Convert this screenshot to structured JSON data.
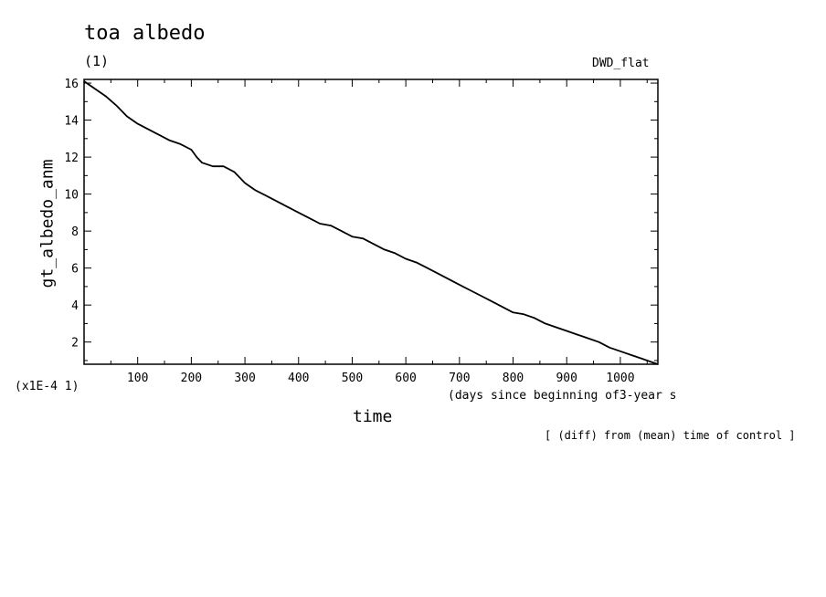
{
  "title": "toa albedo",
  "unit_label": "(1)",
  "run_label": "DWD_flat",
  "scale_label": "(x1E-4 1)",
  "x_unit_label": "(days since beginning of3-year s",
  "footnote": "[ (diff) from (mean) time of control ]",
  "chart_data": {
    "type": "line",
    "xlabel": "time",
    "ylabel": "gt_albedo_anm",
    "xlim": [
      0,
      1070
    ],
    "ylim": [
      0.8,
      16.2
    ],
    "x_ticks": [
      100,
      200,
      300,
      400,
      500,
      600,
      700,
      800,
      900,
      1000
    ],
    "y_ticks": [
      2,
      4,
      6,
      8,
      10,
      12,
      14,
      16
    ],
    "grid": false,
    "color": "#000000",
    "series": [
      {
        "x": [
          0,
          20,
          40,
          60,
          80,
          100,
          120,
          140,
          160,
          180,
          200,
          210,
          220,
          240,
          260,
          280,
          300,
          320,
          340,
          360,
          380,
          400,
          420,
          440,
          460,
          480,
          500,
          520,
          540,
          560,
          580,
          600,
          620,
          640,
          660,
          680,
          700,
          720,
          740,
          760,
          780,
          800,
          820,
          840,
          860,
          880,
          900,
          920,
          940,
          960,
          980,
          1000,
          1020,
          1040,
          1060,
          1070
        ],
        "y": [
          16.1,
          15.7,
          15.3,
          14.8,
          14.2,
          13.8,
          13.5,
          13.2,
          12.9,
          12.7,
          12.4,
          12.0,
          11.7,
          11.5,
          11.5,
          11.2,
          10.6,
          10.2,
          9.9,
          9.6,
          9.3,
          9.0,
          8.7,
          8.4,
          8.3,
          8.0,
          7.7,
          7.6,
          7.3,
          7.0,
          6.8,
          6.5,
          6.3,
          6.0,
          5.7,
          5.4,
          5.1,
          4.8,
          4.5,
          4.2,
          3.9,
          3.6,
          3.5,
          3.3,
          3.0,
          2.8,
          2.6,
          2.4,
          2.2,
          2.0,
          1.7,
          1.5,
          1.3,
          1.1,
          0.9,
          0.8
        ]
      }
    ]
  }
}
